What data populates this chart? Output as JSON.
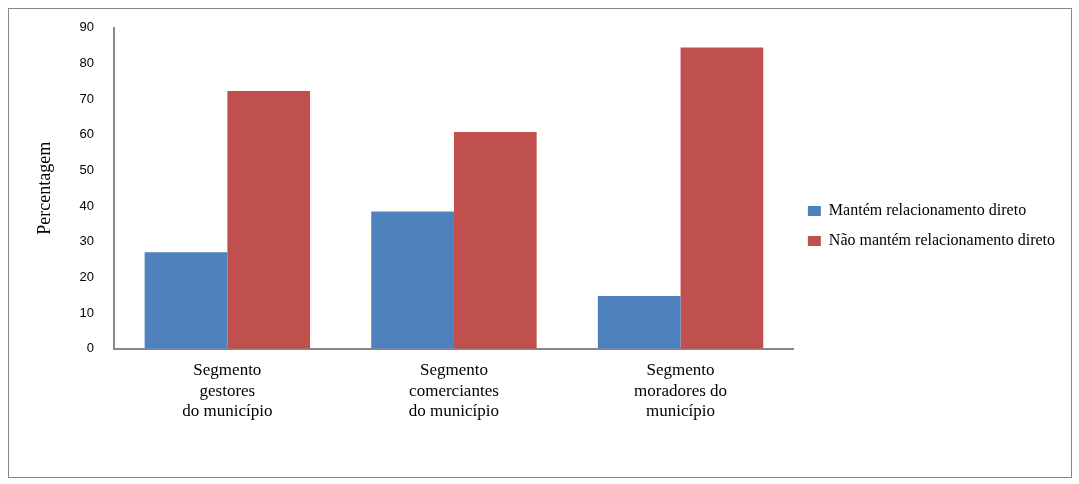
{
  "chart_data": {
    "type": "bar",
    "ylabel": "Percentagem",
    "categories": [
      "Segmento\ngestores\ndo município",
      "Segmento\ncomerciantes\ndo município",
      "Segmento\nmoradores do\nmunicípio"
    ],
    "series": [
      {
        "name": "Mantém relacionamento direto",
        "color": "#4f81bd",
        "values": [
          27.1,
          38.5,
          14.8
        ]
      },
      {
        "name": "Não mantém relacionamento direto",
        "color": "#c0504d",
        "values": [
          72.3,
          60.8,
          84.5
        ]
      }
    ],
    "ylim": [
      0,
      90
    ],
    "yticks": [
      0,
      10,
      20,
      30,
      40,
      50,
      60,
      70,
      80,
      90
    ],
    "grid": false,
    "legend": "right"
  }
}
